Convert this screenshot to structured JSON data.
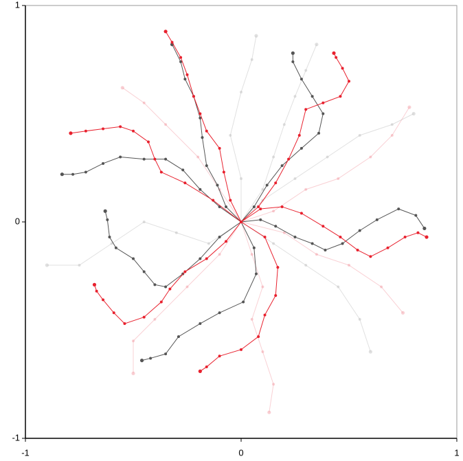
{
  "chart_data": {
    "type": "line",
    "xlim": [
      -1,
      1
    ],
    "ylim": [
      -1,
      1
    ],
    "xticks": [
      -1,
      0,
      1
    ],
    "yticks": [
      -1,
      0,
      1
    ],
    "series": [
      {
        "color": "#bbbbbb",
        "opacity": 0.45,
        "x": [
          0,
          0.1,
          0.15,
          0.2,
          0.25,
          0.3,
          0.35
        ],
        "y": [
          0,
          0.15,
          0.3,
          0.45,
          0.58,
          0.7,
          0.82
        ]
      },
      {
        "color": "#bbbbbb",
        "opacity": 0.45,
        "x": [
          0,
          0.15,
          0.3,
          0.45,
          0.55,
          0.6
        ],
        "y": [
          0,
          -0.1,
          -0.2,
          -0.3,
          -0.45,
          -0.6
        ]
      },
      {
        "color": "#bbbbbb",
        "opacity": 0.45,
        "x": [
          0,
          -0.15,
          -0.3,
          -0.45,
          -0.6,
          -0.75,
          -0.9
        ],
        "y": [
          0,
          -0.1,
          -0.05,
          0,
          -0.1,
          -0.2,
          -0.2
        ]
      },
      {
        "color": "#bbbbbb",
        "opacity": 0.45,
        "x": [
          0,
          0.1,
          0.25,
          0.4,
          0.55,
          0.7,
          0.8
        ],
        "y": [
          0,
          0.1,
          0.2,
          0.3,
          0.4,
          0.45,
          0.5
        ]
      },
      {
        "color": "#bbbbbb",
        "opacity": 0.45,
        "x": [
          0,
          0,
          -0.05,
          0,
          0.05,
          0.07
        ],
        "y": [
          0,
          0.2,
          0.4,
          0.6,
          0.75,
          0.86
        ]
      },
      {
        "color": "#f08a94",
        "opacity": 0.4,
        "x": [
          0,
          -0.1,
          -0.2,
          -0.35,
          -0.45,
          -0.55
        ],
        "y": [
          0,
          0.15,
          0.3,
          0.45,
          0.55,
          0.62
        ]
      },
      {
        "color": "#f08a94",
        "opacity": 0.4,
        "x": [
          0,
          0.05,
          0.1,
          0.05,
          0.1,
          0.15,
          0.13
        ],
        "y": [
          0,
          -0.15,
          -0.3,
          -0.45,
          -0.6,
          -0.75,
          -0.88
        ]
      },
      {
        "color": "#f08a94",
        "opacity": 0.4,
        "x": [
          0,
          0.15,
          0.3,
          0.45,
          0.6,
          0.7,
          0.78
        ],
        "y": [
          0,
          0.05,
          0.15,
          0.2,
          0.3,
          0.4,
          0.53
        ]
      },
      {
        "color": "#f08a94",
        "opacity": 0.4,
        "x": [
          0,
          -0.1,
          -0.25,
          -0.4,
          -0.5,
          -0.5
        ],
        "y": [
          0,
          -0.15,
          -0.3,
          -0.45,
          -0.55,
          -0.7
        ]
      },
      {
        "color": "#f08a94",
        "opacity": 0.4,
        "x": [
          0,
          0.2,
          0.35,
          0.5,
          0.65,
          0.75
        ],
        "y": [
          0,
          -0.05,
          -0.15,
          -0.2,
          -0.3,
          -0.42
        ]
      },
      {
        "color": "#555555",
        "opacity": 1,
        "x": [
          0,
          0.06,
          0.12,
          0.19,
          0.28,
          0.36,
          0.38,
          0.33,
          0.28,
          0.24,
          0.24
        ],
        "y": [
          0,
          0.07,
          0.17,
          0.26,
          0.34,
          0.41,
          0.5,
          0.58,
          0.66,
          0.74,
          0.78
        ]
      },
      {
        "color": "#555555",
        "opacity": 1,
        "x": [
          0,
          -0.1,
          -0.19,
          -0.27,
          -0.35,
          -0.45,
          -0.56,
          -0.64,
          -0.72,
          -0.78,
          -0.83
        ],
        "y": [
          0,
          0.07,
          0.15,
          0.24,
          0.29,
          0.29,
          0.3,
          0.27,
          0.23,
          0.22,
          0.22
        ]
      },
      {
        "color": "#555555",
        "opacity": 1,
        "x": [
          0,
          -0.1,
          -0.19,
          -0.27,
          -0.35,
          -0.4,
          -0.45,
          -0.5,
          -0.58,
          -0.61,
          -0.62,
          -0.63
        ],
        "y": [
          0,
          -0.07,
          -0.17,
          -0.24,
          -0.3,
          -0.29,
          -0.23,
          -0.17,
          -0.12,
          -0.07,
          0.01,
          0.05
        ]
      },
      {
        "color": "#555555",
        "opacity": 1,
        "x": [
          0,
          0.06,
          0.07,
          0.01,
          -0.1,
          -0.19,
          -0.29,
          -0.35,
          -0.42,
          -0.46
        ],
        "y": [
          0,
          -0.12,
          -0.24,
          -0.37,
          -0.42,
          -0.47,
          -0.53,
          -0.61,
          -0.63,
          -0.64
        ]
      },
      {
        "color": "#555555",
        "opacity": 1,
        "x": [
          0,
          0.09,
          0.16,
          0.25,
          0.33,
          0.39,
          0.47,
          0.55,
          0.63,
          0.73,
          0.81,
          0.85
        ],
        "y": [
          0,
          0.01,
          -0.02,
          -0.07,
          -0.1,
          -0.13,
          -0.1,
          -0.04,
          0.01,
          0.06,
          0.03,
          -0.03
        ]
      },
      {
        "color": "#555555",
        "opacity": 1,
        "x": [
          0,
          -0.07,
          -0.11,
          -0.16,
          -0.18,
          -0.19,
          -0.22,
          -0.26,
          -0.28,
          -0.32
        ],
        "y": [
          0,
          0.07,
          0.17,
          0.26,
          0.39,
          0.48,
          0.58,
          0.66,
          0.74,
          0.82
        ]
      },
      {
        "color": "#e8212e",
        "opacity": 1,
        "x": [
          0,
          -0.05,
          -0.08,
          -0.1,
          -0.16,
          -0.19,
          -0.22,
          -0.25,
          -0.28,
          -0.32,
          -0.35
        ],
        "y": [
          0,
          0.1,
          0.23,
          0.34,
          0.42,
          0.5,
          0.58,
          0.68,
          0.76,
          0.83,
          0.88
        ]
      },
      {
        "color": "#e8212e",
        "opacity": 1,
        "x": [
          0,
          0.08,
          0.16,
          0.22,
          0.27,
          0.3,
          0.38,
          0.46,
          0.5,
          0.47,
          0.44,
          0.43
        ],
        "y": [
          0,
          0.07,
          0.18,
          0.29,
          0.4,
          0.52,
          0.55,
          0.58,
          0.65,
          0.71,
          0.76,
          0.78
        ]
      },
      {
        "color": "#e8212e",
        "opacity": 1,
        "x": [
          0,
          -0.13,
          -0.26,
          -0.37,
          -0.4,
          -0.43,
          -0.5,
          -0.56,
          -0.64,
          -0.72,
          -0.79
        ],
        "y": [
          0,
          0.1,
          0.18,
          0.23,
          0.29,
          0.37,
          0.42,
          0.44,
          0.43,
          0.42,
          0.41
        ]
      },
      {
        "color": "#e8212e",
        "opacity": 1,
        "x": [
          0,
          -0.07,
          -0.16,
          -0.26,
          -0.33,
          -0.37,
          -0.45,
          -0.54,
          -0.59,
          -0.64,
          -0.67,
          -0.68
        ],
        "y": [
          0,
          -0.09,
          -0.17,
          -0.23,
          -0.31,
          -0.37,
          -0.44,
          -0.47,
          -0.42,
          -0.36,
          -0.32,
          -0.29
        ]
      },
      {
        "color": "#e8212e",
        "opacity": 1,
        "x": [
          0,
          0.11,
          0.17,
          0.16,
          0.11,
          0.08,
          0,
          -0.1,
          -0.16,
          -0.19
        ],
        "y": [
          0,
          -0.07,
          -0.21,
          -0.34,
          -0.43,
          -0.53,
          -0.59,
          -0.62,
          -0.67,
          -0.69
        ]
      },
      {
        "color": "#e8212e",
        "opacity": 1,
        "x": [
          0,
          0.09,
          0.19,
          0.28,
          0.38,
          0.46,
          0.54,
          0.6,
          0.68,
          0.76,
          0.82,
          0.86
        ],
        "y": [
          0,
          0.06,
          0.07,
          0.04,
          -0.02,
          -0.07,
          -0.13,
          -0.16,
          -0.12,
          -0.07,
          -0.05,
          -0.07
        ]
      }
    ]
  }
}
